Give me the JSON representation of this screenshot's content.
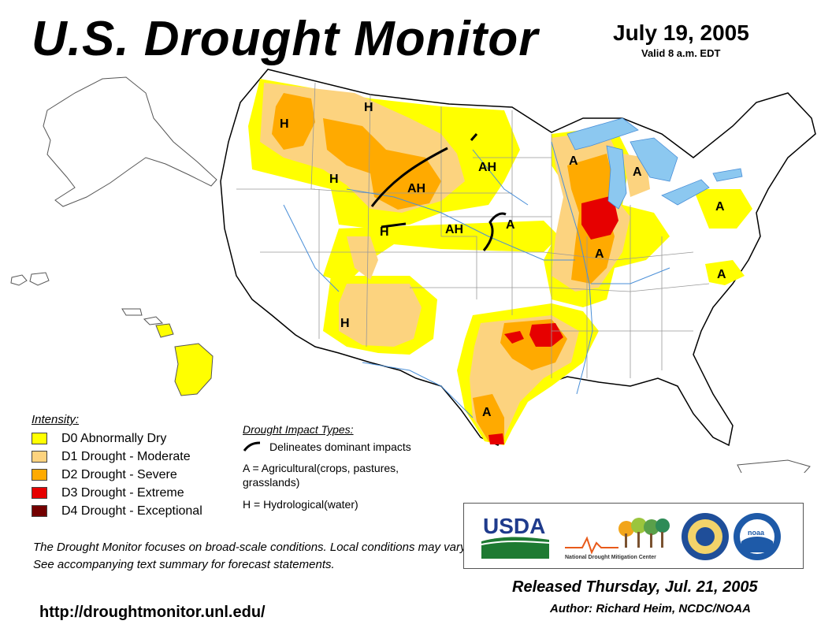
{
  "header": {
    "title": "U.S. Drought Monitor",
    "date": "July 19, 2005",
    "valid": "Valid 8 a.m. EDT"
  },
  "legend": {
    "title": "Intensity:",
    "items": [
      {
        "label": "D0 Abnormally Dry",
        "color": "#ffff00"
      },
      {
        "label": "D1 Drought - Moderate",
        "color": "#fcd37f"
      },
      {
        "label": "D2 Drought - Severe",
        "color": "#ffaa00"
      },
      {
        "label": "D3 Drought - Extreme",
        "color": "#e60000"
      },
      {
        "label": "D4 Drought - Exceptional",
        "color": "#730000"
      }
    ]
  },
  "impact": {
    "title": "Drought Impact Types:",
    "line_label": "Delineates dominant impacts",
    "agri": "A = Agricultural(crops, pastures, grasslands)",
    "hydro": "H = Hydrological(water)"
  },
  "map": {
    "labels": [
      "H",
      "H",
      "H",
      "AH",
      "AH",
      "H",
      "AH",
      "A",
      "H",
      "A",
      "A",
      "A",
      "A",
      "A",
      "A"
    ],
    "colors": {
      "water": "#8cc8f0",
      "border": "#000000",
      "state": "#888888",
      "river": "#4a8fd8"
    }
  },
  "notice": "The Drought Monitor focuses on broad-scale conditions. Local conditions may vary. See accompanying text summary for forecast statements.",
  "url": "http://droughtmonitor.unl.edu/",
  "logos": {
    "usda": "USDA",
    "ndmc": "National Drought Mitigation Center",
    "noaa": "noaa"
  },
  "footer": {
    "released": "Released Thursday, Jul. 21, 2005",
    "author": "Author: Richard Heim, NCDC/NOAA"
  }
}
